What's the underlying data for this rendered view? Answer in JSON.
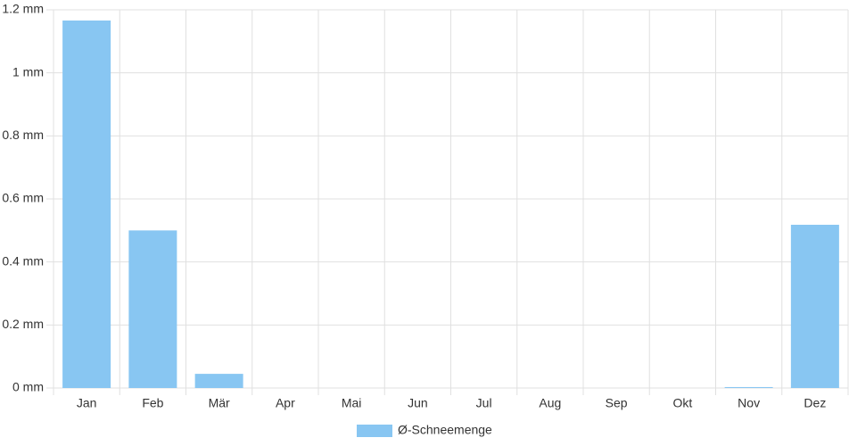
{
  "chart_data": {
    "type": "bar",
    "categories": [
      "Jan",
      "Feb",
      "Mär",
      "Apr",
      "Mai",
      "Jun",
      "Jul",
      "Aug",
      "Sep",
      "Okt",
      "Nov",
      "Dez"
    ],
    "series": [
      {
        "name": "Ø-Schneemenge",
        "color": "#88c6f2",
        "values": [
          1.166,
          0.5,
          0.045,
          0,
          0,
          0,
          0,
          0,
          0,
          0,
          0.003,
          0.518
        ]
      }
    ],
    "ylim": [
      0,
      1.2
    ],
    "yticks": [
      {
        "value": 0,
        "label": "0 mm"
      },
      {
        "value": 0.2,
        "label": "0.2 mm"
      },
      {
        "value": 0.4,
        "label": "0.4 mm"
      },
      {
        "value": 0.6,
        "label": "0.6 mm"
      },
      {
        "value": 0.8,
        "label": "0.8 mm"
      },
      {
        "value": 1,
        "label": "1 mm"
      },
      {
        "value": 1.2,
        "label": "1.2 mm"
      }
    ],
    "grid": true,
    "legend": "bottom"
  }
}
